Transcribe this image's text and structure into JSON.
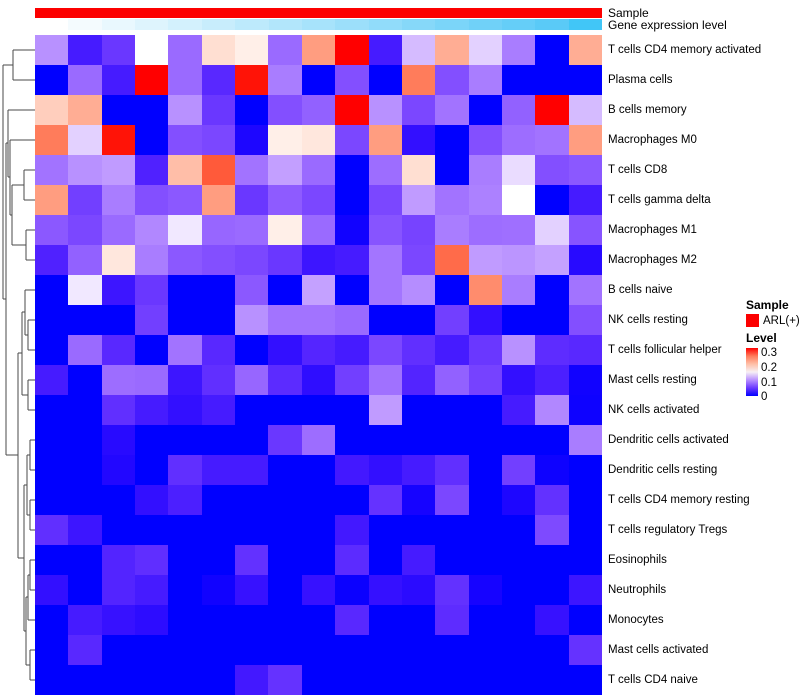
{
  "background": "#FFFFFF",
  "annotation_labels": {
    "sample": "Sample",
    "gene_expression": "Gene expression level"
  },
  "legend": {
    "sample": {
      "title": "Sample",
      "items": [
        {
          "label": "ARL(+)",
          "color": "#FC0000"
        }
      ]
    },
    "level": {
      "title": "Level",
      "ticks": [
        "0.3",
        "0.2",
        "0.1",
        "0"
      ],
      "gradient_stops": [
        "#FF0000",
        "#FF7B5B",
        "#FFBFA7",
        "#F7F0F5",
        "#B890FF",
        "#6A37FF",
        "#0000FF"
      ]
    }
  },
  "chart_data": {
    "type": "heatmap",
    "title": "",
    "n_columns": 17,
    "column_labels_visible": false,
    "rows": [
      "T cells CD4 memory activated",
      "Plasma cells",
      "B cells memory",
      "Macrophages M0",
      "T cells CD8",
      "T cells gamma delta",
      "Macrophages M1",
      "Macrophages M2",
      "B cells naive",
      "NK cells resting",
      "T cells follicular helper",
      "Mast cells resting",
      "NK cells activated",
      "Dendritic cells activated",
      "Dendritic cells resting",
      "T cells CD4 memory resting",
      "T cells regulatory  Tregs",
      "Eosinophils",
      "Neutrophils",
      "Monocytes",
      "Mast cells activated",
      "T cells CD4 naive"
    ],
    "values": [
      [
        0.1,
        0.03,
        0.05,
        0.15,
        0.08,
        0.17,
        0.16,
        0.08,
        0.21,
        0.3,
        0.03,
        0.12,
        0.2,
        0.13,
        0.09,
        0.0,
        0.2
      ],
      [
        0.0,
        0.08,
        0.03,
        0.3,
        0.08,
        0.04,
        0.29,
        0.09,
        0.0,
        0.065,
        0.0,
        0.23,
        0.065,
        0.09,
        0.0,
        0.0,
        0.0
      ],
      [
        0.18,
        0.2,
        0.0,
        0.0,
        0.1,
        0.05,
        0.0,
        0.065,
        0.075,
        0.3,
        0.1,
        0.06,
        0.085,
        0.0,
        0.075,
        0.3,
        0.12
      ],
      [
        0.23,
        0.13,
        0.29,
        0.0,
        0.065,
        0.06,
        0.01,
        0.16,
        0.165,
        0.06,
        0.21,
        0.02,
        0.0,
        0.065,
        0.082,
        0.085,
        0.21
      ],
      [
        0.085,
        0.1,
        0.105,
        0.035,
        0.19,
        0.25,
        0.085,
        0.107,
        0.08,
        0.0,
        0.082,
        0.17,
        0.0,
        0.09,
        0.135,
        0.065,
        0.07
      ],
      [
        0.21,
        0.055,
        0.09,
        0.065,
        0.07,
        0.21,
        0.05,
        0.072,
        0.06,
        0.0,
        0.06,
        0.105,
        0.085,
        0.092,
        0.15,
        0.0,
        0.03
      ],
      [
        0.07,
        0.06,
        0.08,
        0.095,
        0.14,
        0.078,
        0.08,
        0.16,
        0.08,
        0.005,
        0.068,
        0.058,
        0.09,
        0.082,
        0.083,
        0.13,
        0.068
      ],
      [
        0.035,
        0.075,
        0.165,
        0.09,
        0.07,
        0.065,
        0.06,
        0.05,
        0.025,
        0.03,
        0.086,
        0.06,
        0.24,
        0.105,
        0.102,
        0.108,
        0.015
      ],
      [
        0.0,
        0.14,
        0.025,
        0.05,
        0.0,
        0.0,
        0.07,
        0.0,
        0.108,
        0.0,
        0.086,
        0.098,
        0.0,
        0.22,
        0.09,
        0.0,
        0.085
      ],
      [
        0.0,
        0.0,
        0.0,
        0.055,
        0.0,
        0.0,
        0.1,
        0.085,
        0.085,
        0.08,
        0.0,
        0.0,
        0.055,
        0.02,
        0.0,
        0.0,
        0.065
      ],
      [
        0.0,
        0.08,
        0.04,
        0.0,
        0.085,
        0.04,
        0.0,
        0.02,
        0.038,
        0.03,
        0.06,
        0.045,
        0.03,
        0.05,
        0.1,
        0.043,
        0.04
      ],
      [
        0.03,
        0.0,
        0.082,
        0.08,
        0.025,
        0.045,
        0.078,
        0.042,
        0.018,
        0.055,
        0.084,
        0.037,
        0.075,
        0.057,
        0.02,
        0.033,
        0.005
      ],
      [
        0.0,
        0.0,
        0.045,
        0.03,
        0.02,
        0.03,
        0.0,
        0.0,
        0.0,
        0.0,
        0.105,
        0.0,
        0.0,
        0.0,
        0.03,
        0.095,
        0.004
      ],
      [
        0.0,
        0.0,
        0.015,
        0.0,
        0.0,
        0.0,
        0.0,
        0.05,
        0.082,
        0.0,
        0.0,
        0.0,
        0.0,
        0.0,
        0.0,
        0.0,
        0.09
      ],
      [
        0.0,
        0.0,
        0.012,
        0.0,
        0.045,
        0.03,
        0.03,
        0.0,
        0.0,
        0.028,
        0.02,
        0.03,
        0.045,
        0.0,
        0.055,
        0.004,
        0.0
      ],
      [
        0.0,
        0.0,
        0.0,
        0.02,
        0.033,
        0.0,
        0.0,
        0.0,
        0.0,
        0.0,
        0.047,
        0.007,
        0.06,
        0.0,
        0.01,
        0.046,
        0.0
      ],
      [
        0.045,
        0.025,
        0.0,
        0.0,
        0.0,
        0.0,
        0.0,
        0.0,
        0.0,
        0.028,
        0.0,
        0.0,
        0.0,
        0.0,
        0.0,
        0.062,
        0.0
      ],
      [
        0.0,
        0.0,
        0.037,
        0.044,
        0.0,
        0.0,
        0.046,
        0.0,
        0.0,
        0.042,
        0.0,
        0.03,
        0.0,
        0.0,
        0.0,
        0.0,
        0.0
      ],
      [
        0.02,
        0.0,
        0.037,
        0.03,
        0.0,
        0.005,
        0.022,
        0.0,
        0.022,
        0.003,
        0.021,
        0.016,
        0.046,
        0.007,
        0.0,
        0.0,
        0.025
      ],
      [
        0.0,
        0.03,
        0.022,
        0.017,
        0.0,
        0.0,
        0.0,
        0.0,
        0.0,
        0.04,
        0.0,
        0.0,
        0.043,
        0.0,
        0.0,
        0.022,
        0.0
      ],
      [
        0.0,
        0.04,
        0.0,
        0.0,
        0.0,
        0.0,
        0.0,
        0.0,
        0.0,
        0.0,
        0.0,
        0.0,
        0.0,
        0.0,
        0.0,
        0.0,
        0.047
      ],
      [
        0.0,
        0.0,
        0.0,
        0.0,
        0.0,
        0.0,
        0.028,
        0.047,
        0.0,
        0.0,
        0.0,
        0.0,
        0.0,
        0.0,
        0.0,
        0.0,
        0.0
      ]
    ],
    "value_range": [
      0,
      0.3
    ],
    "colormap": {
      "low": "#0000FF",
      "mid": "#FFFFFF",
      "high": "#FF0000",
      "midpoint": 0.15
    },
    "row_dendrogram": true,
    "legend_position": "right",
    "annotations": {
      "sample": {
        "label": "Sample",
        "uniform_value": "ARL(+)",
        "color": "#FC0000"
      },
      "gene_expression_level": {
        "label": "Gene expression level",
        "colors": [
          "#FFFFFF",
          "#F4FBFE",
          "#E9F8FE",
          "#DEF4FD",
          "#D3F1FD",
          "#C8EDFC",
          "#BDEAFC",
          "#B2E6FB",
          "#A7E3FB",
          "#9CDFFA",
          "#91DCFA",
          "#86D8F9",
          "#7BD5F9",
          "#70D1F8",
          "#65CEF8",
          "#5ACAF7",
          "#41C6F7"
        ]
      }
    }
  }
}
